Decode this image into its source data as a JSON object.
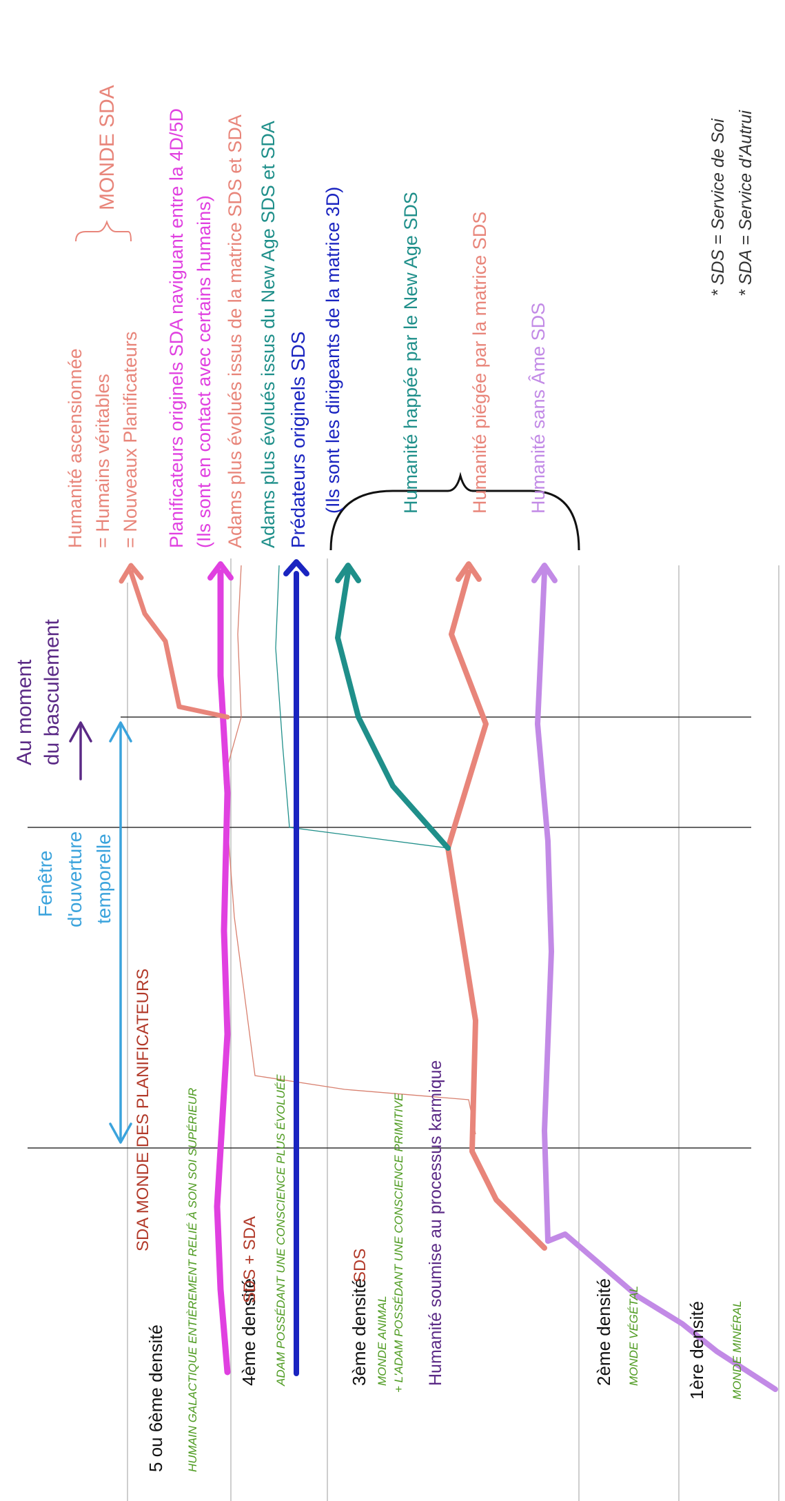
{
  "colors": {
    "salmon": "#e8857a",
    "magenta": "#e040e0",
    "teal": "#1f8f8a",
    "navy": "#1a24c0",
    "lavender": "#c28ae6",
    "purple": "#5b2a86",
    "sky": "#3ba3dc",
    "green": "#4d9a1f",
    "darkred": "#b23a2a",
    "gray": "#bdbdbd",
    "black": "#111111"
  },
  "levels": {
    "level5": "5 ou 6ème densité",
    "level5_note": "HUMAIN GALACTIQUE ENTIÈREMENT RELIÉ À SON SOI SUPÉRIEUR",
    "level5_world": "SDA MONDE DES PLANIFICATEURS",
    "level4": "4ème densité",
    "level4_note": "ADAM POSSÉDANT UNE CONSCIENCE PLUS ÉVOLUÉE",
    "level4_world": "SDS + SDA",
    "level3": "3ème densité",
    "level3_world": "SDS",
    "level3_note1": "MONDE ANIMAL",
    "level3_note2": "+ L'ADAM POSSÉDANT UNE CONSCIENCE PRIMITIVE",
    "level3_karmic": "Humanité soumise au processus karmique",
    "level2": "2ème densité",
    "level2_note": "MONDE VÉGÉTAL",
    "level1": "1ère densité",
    "level1_note": "MONDE MINÉRAL"
  },
  "timeline": {
    "window_line1": "Fenêtre",
    "window_line2": "d'ouverture",
    "window_line3": "temporelle",
    "moment_line1": "Au moment",
    "moment_line2": "du basculement"
  },
  "outcomes": {
    "ascended_1": "Humanité ascensionnée",
    "ascended_2": "= Humains véritables",
    "ascended_3": "= Nouveaux Planificateurs",
    "monde_sda": "MONDE SDA",
    "planners_1": "Planificateurs originels SDA naviguant entre la 4D/5D",
    "planners_2": "(Ils sont en contact avec certains humains)",
    "adams_matrix": "Adams plus évolués issus de la matrice SDS et SDA",
    "adams_newage": "Adams plus évolués issus du New Age SDS et SDA",
    "predators_1": "Prédateurs originels SDS",
    "predators_2": "(Ils sont les dirigeants de la matrice 3D)",
    "newage": "Humanité happée par le New Age SDS",
    "trapped": "Humanité piégée par la matrice SDS",
    "soulless": "Humanité sans Âme SDS"
  },
  "legend": {
    "sds": "* SDS = Service de Soi",
    "sda": "* SDA = Service d'Autrui"
  }
}
